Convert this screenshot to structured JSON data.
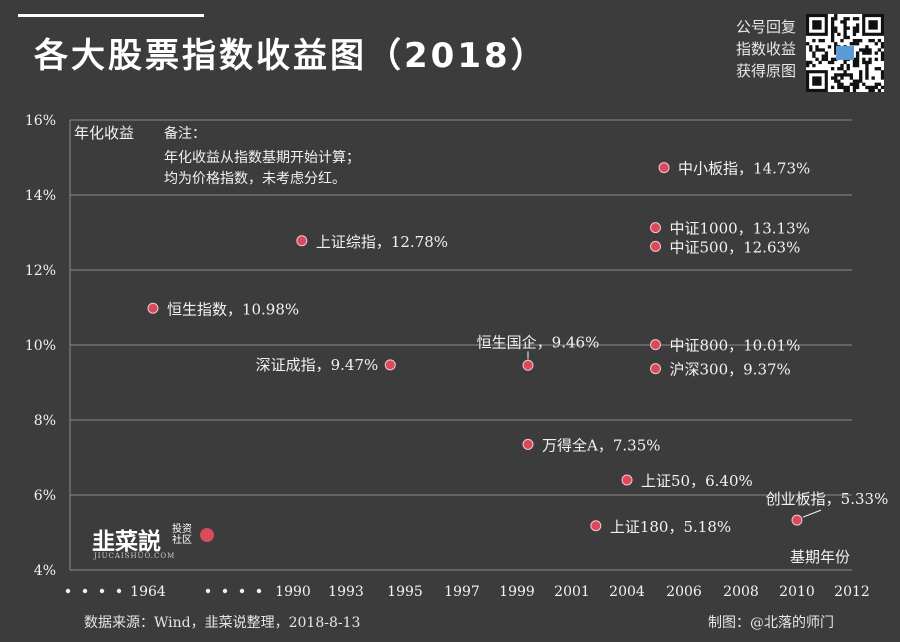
{
  "header": {
    "title": "各大股票指数收益图（2018）",
    "promo_lines": [
      "公号回复",
      "指数收益",
      "获得原图"
    ]
  },
  "logo": {
    "main": "韭菜説",
    "side": "投资社区",
    "sub": "JIUCAISHUO.COM"
  },
  "footer": {
    "source": "数据来源：Wind，韭菜说整理，2018-8-13",
    "credit": "制图：@北落的师门"
  },
  "colors": {
    "background": "#3c3c3c",
    "point": "#d84a5c",
    "grid": "#8a8a8a",
    "text": "#f2f2f2"
  },
  "chart_data": {
    "type": "scatter",
    "title": "各大股票指数收益图（2018）",
    "xlabel": "基期年份",
    "ylabel": "年化收益",
    "note_title": "备注：",
    "note_lines": [
      "年化收益从指数基期开始计算；",
      "均为价格指数，未考虑分红。"
    ],
    "x_ticks": [
      "1964",
      "1990",
      "1993",
      "1995",
      "1997",
      "1999",
      "2001",
      "2004",
      "2006",
      "2008",
      "2010",
      "2012"
    ],
    "y_ticks": [
      "4%",
      "6%",
      "8%",
      "10%",
      "12%",
      "14%",
      "16%"
    ],
    "ylim": [
      4,
      16
    ],
    "grid": true,
    "points": [
      {
        "name": "恒生指数",
        "value_label": "10.98%",
        "year": 1964.3,
        "y": 10.98,
        "label_side": "right"
      },
      {
        "name": "上证综指",
        "value_label": "12.78%",
        "year": 1990.5,
        "y": 12.78,
        "label_side": "right"
      },
      {
        "name": "深证成指",
        "value_label": "9.47%",
        "year": 1994.5,
        "y": 9.47,
        "label_side": "left"
      },
      {
        "name": "恒生国企",
        "value_label": "9.46%",
        "year": 1999.4,
        "y": 9.46,
        "label_side": "above"
      },
      {
        "name": "万得全A",
        "value_label": "7.35%",
        "year": 1999.4,
        "y": 7.35,
        "label_side": "right"
      },
      {
        "name": "上证180",
        "value_label": "5.18%",
        "year": 2002.3,
        "y": 5.18,
        "label_side": "right"
      },
      {
        "name": "上证50",
        "value_label": "6.40%",
        "year": 2004.0,
        "y": 6.4,
        "label_side": "right"
      },
      {
        "name": "中证1000",
        "value_label": "13.13%",
        "year": 2005.0,
        "y": 13.13,
        "label_side": "right"
      },
      {
        "name": "中证500",
        "value_label": "12.63%",
        "year": 2005.0,
        "y": 12.63,
        "label_side": "right"
      },
      {
        "name": "中证800",
        "value_label": "10.01%",
        "year": 2005.0,
        "y": 10.01,
        "label_side": "right"
      },
      {
        "name": "沪深300",
        "value_label": "9.37%",
        "year": 2005.0,
        "y": 9.37,
        "label_side": "right"
      },
      {
        "name": "中小板指",
        "value_label": "14.73%",
        "year": 2005.3,
        "y": 14.73,
        "label_side": "right"
      },
      {
        "name": "创业板指",
        "value_label": "5.33%",
        "year": 2010.0,
        "y": 5.33,
        "label_side": "above-left"
      }
    ]
  }
}
